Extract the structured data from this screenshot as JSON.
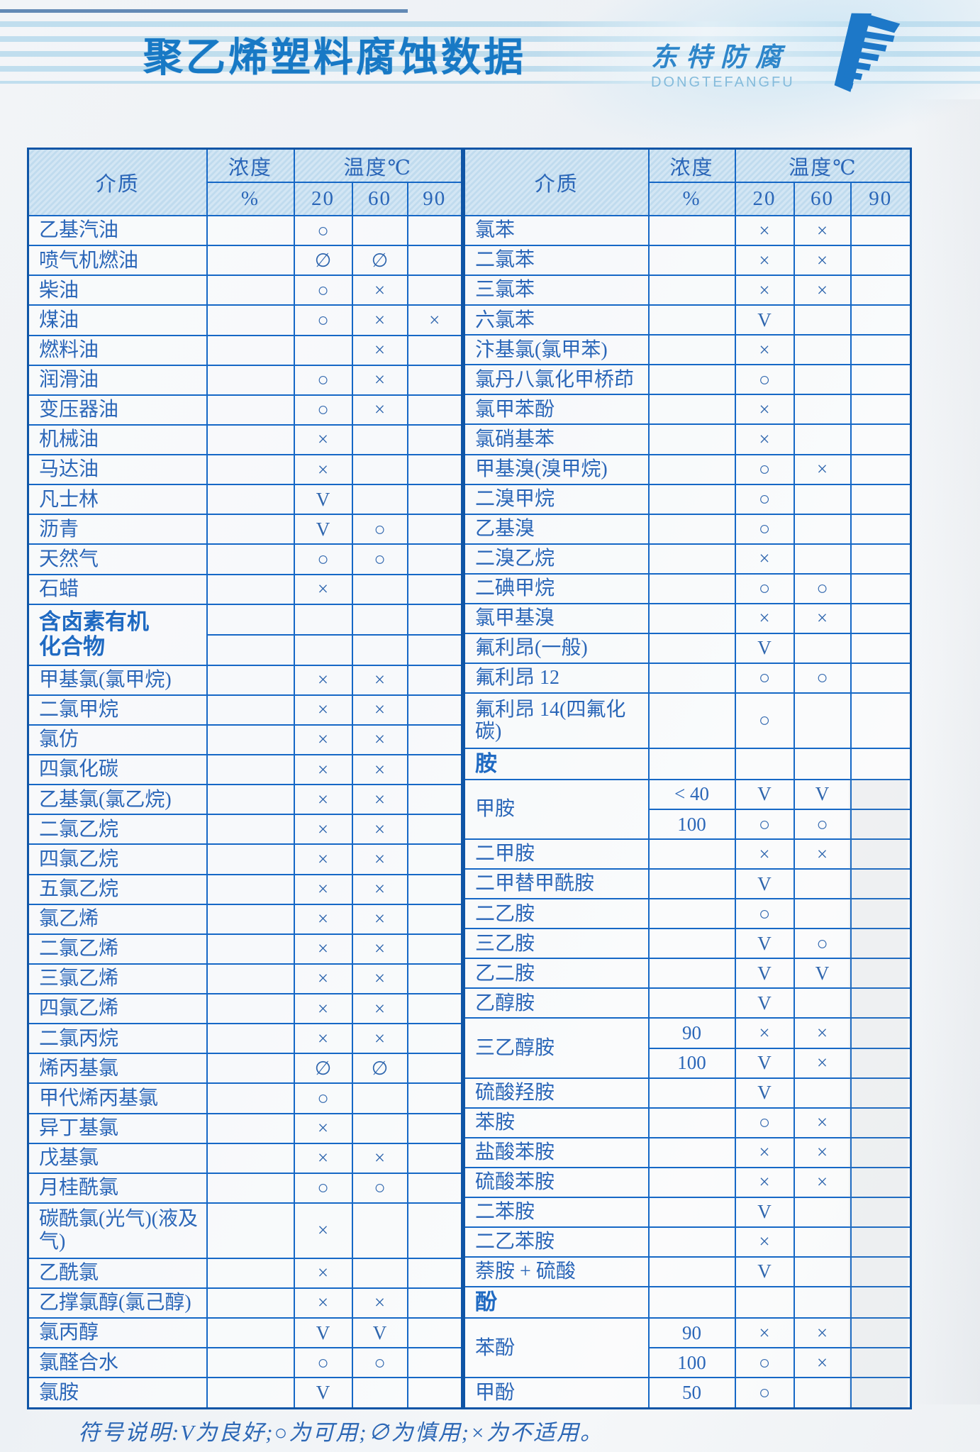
{
  "page": {
    "title": "聚乙烯塑料腐蚀数据",
    "brand": {
      "name": "东特防腐",
      "latin": "DONGTEFANGFU"
    },
    "legend": "符号说明:V为良好;○为可用;∅为慎用;×为不适用。"
  },
  "colors": {
    "brand_blue": "#1879c5",
    "grid_blue": "#1668c6",
    "text_blue": "#2a66b8",
    "header_fill": "#c9dff0"
  },
  "symbols": {
    "good": "V",
    "usable": "○",
    "caution": "∅",
    "unsuitable": "×"
  },
  "table": {
    "headers": {
      "medium": "介质",
      "concentration": "浓度",
      "percent": "%",
      "temperature": "温度℃",
      "temps": [
        "20",
        "60",
        "90"
      ]
    },
    "left_rows": [
      {
        "n": "乙基汽油",
        "v": [
          "",
          "○",
          "",
          ""
        ]
      },
      {
        "n": "喷气机燃油",
        "v": [
          "",
          "∅",
          "∅",
          ""
        ]
      },
      {
        "n": "柴油",
        "v": [
          "",
          "○",
          "×",
          ""
        ]
      },
      {
        "n": "煤油",
        "v": [
          "",
          "○",
          "×",
          "×"
        ]
      },
      {
        "n": "燃料油",
        "v": [
          "",
          "",
          "×",
          ""
        ]
      },
      {
        "n": "润滑油",
        "v": [
          "",
          "○",
          "×",
          ""
        ]
      },
      {
        "n": "变压器油",
        "v": [
          "",
          "○",
          "×",
          ""
        ]
      },
      {
        "n": "机械油",
        "v": [
          "",
          "×",
          "",
          ""
        ]
      },
      {
        "n": "马达油",
        "v": [
          "",
          "×",
          "",
          ""
        ]
      },
      {
        "n": "凡士林",
        "v": [
          "",
          "V",
          "",
          ""
        ]
      },
      {
        "n": "沥青",
        "v": [
          "",
          "V",
          "○",
          ""
        ]
      },
      {
        "n": "天然气",
        "v": [
          "",
          "○",
          "○",
          ""
        ]
      },
      {
        "n": "石蜡",
        "v": [
          "",
          "×",
          "",
          ""
        ]
      },
      {
        "n": "含卤素有机\n化合物",
        "rs": 2,
        "sec": true,
        "v": [
          "",
          "",
          "",
          ""
        ]
      },
      {
        "cont": true,
        "v": [
          "",
          "",
          "",
          ""
        ]
      },
      {
        "n": "甲基氯(氯甲烷)",
        "v": [
          "",
          "×",
          "×",
          ""
        ]
      },
      {
        "n": "二氯甲烷",
        "v": [
          "",
          "×",
          "×",
          ""
        ]
      },
      {
        "n": "氯仿",
        "v": [
          "",
          "×",
          "×",
          ""
        ]
      },
      {
        "n": "四氯化碳",
        "v": [
          "",
          "×",
          "×",
          ""
        ]
      },
      {
        "n": "乙基氯(氯乙烷)",
        "v": [
          "",
          "×",
          "×",
          ""
        ]
      },
      {
        "n": "二氯乙烷",
        "v": [
          "",
          "×",
          "×",
          ""
        ]
      },
      {
        "n": "四氯乙烷",
        "v": [
          "",
          "×",
          "×",
          ""
        ]
      },
      {
        "n": "五氯乙烷",
        "v": [
          "",
          "×",
          "×",
          ""
        ]
      },
      {
        "n": "氯乙烯",
        "v": [
          "",
          "×",
          "×",
          ""
        ]
      },
      {
        "n": "二氯乙烯",
        "v": [
          "",
          "×",
          "×",
          ""
        ]
      },
      {
        "n": "三氯乙烯",
        "v": [
          "",
          "×",
          "×",
          ""
        ]
      },
      {
        "n": "四氯乙烯",
        "v": [
          "",
          "×",
          "×",
          ""
        ]
      },
      {
        "n": "二氯丙烷",
        "v": [
          "",
          "×",
          "×",
          ""
        ]
      },
      {
        "n": "烯丙基氯",
        "v": [
          "",
          "∅",
          "∅",
          ""
        ]
      },
      {
        "n": "甲代烯丙基氯",
        "v": [
          "",
          "○",
          "",
          ""
        ]
      },
      {
        "n": "异丁基氯",
        "v": [
          "",
          "×",
          "",
          ""
        ]
      },
      {
        "n": "戊基氯",
        "v": [
          "",
          "×",
          "×",
          ""
        ]
      },
      {
        "n": "月桂酰氯",
        "v": [
          "",
          "○",
          "○",
          ""
        ]
      },
      {
        "n": "碳酰氯(光气)(液及气)",
        "v": [
          "",
          "×",
          "",
          ""
        ]
      },
      {
        "n": "乙酰氯",
        "v": [
          "",
          "×",
          "",
          ""
        ]
      },
      {
        "n": "乙撑氯醇(氯己醇)",
        "v": [
          "",
          "×",
          "×",
          ""
        ]
      },
      {
        "n": "氯丙醇",
        "v": [
          "",
          "V",
          "V",
          ""
        ]
      },
      {
        "n": "氯醛合水",
        "v": [
          "",
          "○",
          "○",
          ""
        ]
      },
      {
        "n": "氯胺",
        "v": [
          "",
          "V",
          "",
          ""
        ]
      }
    ],
    "right_rows": [
      {
        "n": "氯苯",
        "v": [
          "",
          "×",
          "×",
          ""
        ]
      },
      {
        "n": "二氯苯",
        "v": [
          "",
          "×",
          "×",
          ""
        ]
      },
      {
        "n": "三氯苯",
        "v": [
          "",
          "×",
          "×",
          ""
        ]
      },
      {
        "n": "六氯苯",
        "v": [
          "",
          "V",
          "",
          ""
        ]
      },
      {
        "n": "汴基氯(氯甲苯)",
        "v": [
          "",
          "×",
          "",
          ""
        ]
      },
      {
        "n": "氯丹八氯化甲桥茚",
        "v": [
          "",
          "○",
          "",
          ""
        ]
      },
      {
        "n": "氯甲苯酚",
        "v": [
          "",
          "×",
          "",
          ""
        ]
      },
      {
        "n": "氯硝基苯",
        "v": [
          "",
          "×",
          "",
          ""
        ]
      },
      {
        "n": "甲基溴(溴甲烷)",
        "v": [
          "",
          "○",
          "×",
          ""
        ]
      },
      {
        "n": "二溴甲烷",
        "v": [
          "",
          "○",
          "",
          ""
        ]
      },
      {
        "n": "乙基溴",
        "v": [
          "",
          "○",
          "",
          ""
        ]
      },
      {
        "n": "二溴乙烷",
        "v": [
          "",
          "×",
          "",
          ""
        ]
      },
      {
        "n": "二碘甲烷",
        "v": [
          "",
          "○",
          "○",
          ""
        ]
      },
      {
        "n": "氯甲基溴",
        "v": [
          "",
          "×",
          "×",
          ""
        ]
      },
      {
        "n": "氟利昂(一般)",
        "v": [
          "",
          "V",
          "",
          ""
        ]
      },
      {
        "n": "氟利昂 12",
        "v": [
          "",
          "○",
          "○",
          ""
        ]
      },
      {
        "n": "氟利昂 14(四氟化碳)",
        "v": [
          "",
          "○",
          "",
          ""
        ]
      },
      {
        "n": "胺",
        "sec": true,
        "v": [
          "",
          "",
          "",
          ""
        ]
      },
      {
        "n": "甲胺",
        "rs": 2,
        "v": [
          "< 40",
          "V",
          "V",
          ""
        ]
      },
      {
        "cont": true,
        "v": [
          "100",
          "○",
          "○",
          ""
        ]
      },
      {
        "n": "二甲胺",
        "v": [
          "",
          "×",
          "×",
          ""
        ]
      },
      {
        "n": "二甲替甲酰胺",
        "v": [
          "",
          "V",
          "",
          ""
        ]
      },
      {
        "n": "二乙胺",
        "v": [
          "",
          "○",
          "",
          ""
        ]
      },
      {
        "n": "三乙胺",
        "v": [
          "",
          "V",
          "○",
          ""
        ]
      },
      {
        "n": "乙二胺",
        "v": [
          "",
          "V",
          "V",
          ""
        ]
      },
      {
        "n": "乙醇胺",
        "v": [
          "",
          "V",
          "",
          ""
        ]
      },
      {
        "n": "三乙醇胺",
        "rs": 2,
        "v": [
          "90",
          "×",
          "×",
          ""
        ]
      },
      {
        "cont": true,
        "v": [
          "100",
          "V",
          "×",
          ""
        ]
      },
      {
        "n": "硫酸羟胺",
        "v": [
          "",
          "V",
          "",
          ""
        ]
      },
      {
        "n": "苯胺",
        "v": [
          "",
          "○",
          "×",
          ""
        ]
      },
      {
        "n": "盐酸苯胺",
        "v": [
          "",
          "×",
          "×",
          ""
        ]
      },
      {
        "n": "硫酸苯胺",
        "v": [
          "",
          "×",
          "×",
          ""
        ]
      },
      {
        "n": "二苯胺",
        "v": [
          "",
          "V",
          "",
          ""
        ]
      },
      {
        "n": "二乙苯胺",
        "v": [
          "",
          "×",
          "",
          ""
        ]
      },
      {
        "n": "萘胺 + 硫酸",
        "v": [
          "",
          "V",
          "",
          ""
        ]
      },
      {
        "n": "酚",
        "sec": true,
        "v": [
          "",
          "",
          "",
          ""
        ]
      },
      {
        "n": "苯酚",
        "rs": 2,
        "v": [
          "90",
          "×",
          "×",
          ""
        ]
      },
      {
        "cont": true,
        "v": [
          "100",
          "○",
          "×",
          ""
        ]
      },
      {
        "n": "甲酚",
        "v": [
          "50",
          "○",
          "",
          ""
        ]
      }
    ]
  }
}
